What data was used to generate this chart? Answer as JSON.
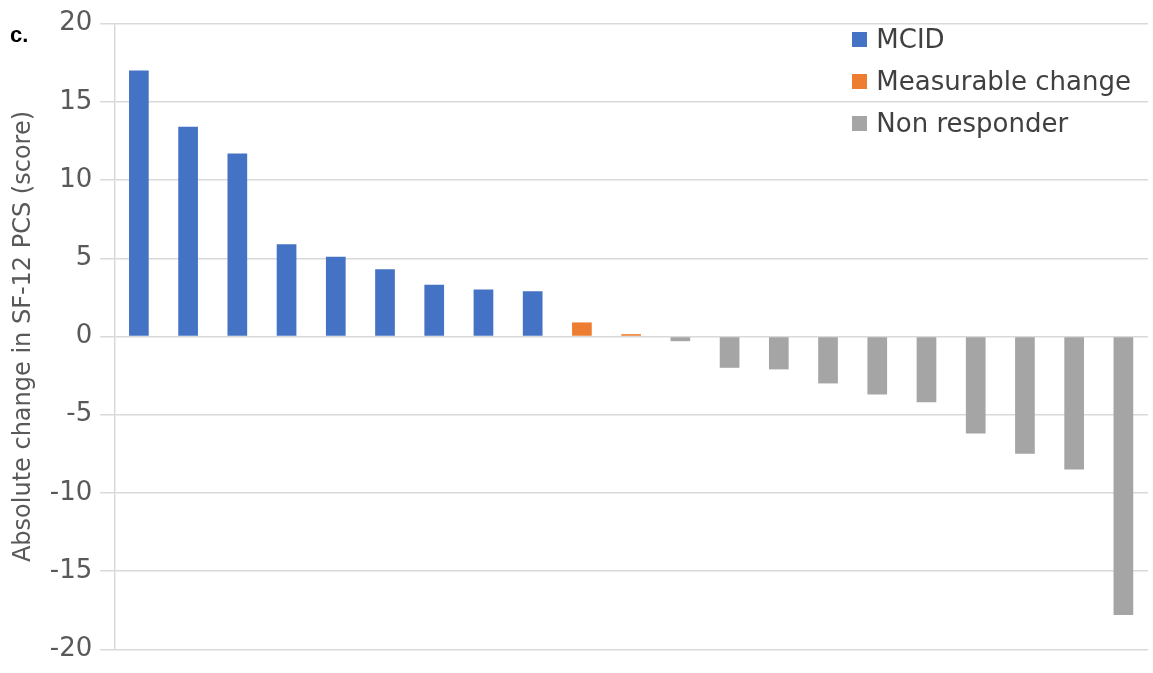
{
  "chart_data": {
    "type": "bar",
    "ylabel": "Absolute change in SF-12 PCS (score)",
    "annotations": [
      "c."
    ],
    "categories": [
      null,
      null,
      null,
      null,
      null,
      null,
      null,
      null,
      null,
      null,
      null,
      null,
      null,
      null,
      null,
      null,
      null,
      null,
      null,
      null,
      null
    ],
    "stacked": true,
    "series": [
      {
        "name": "MCID",
        "color": "#4472c4",
        "values": [
          17.0,
          13.4,
          11.7,
          5.9,
          5.1,
          4.3,
          3.3,
          3.0,
          2.9,
          null,
          null,
          null,
          null,
          null,
          null,
          null,
          null,
          null,
          null,
          null,
          null
        ]
      },
      {
        "name": "Measurable change",
        "color": "#ed7d31",
        "values": [
          null,
          null,
          null,
          null,
          null,
          null,
          null,
          null,
          null,
          0.9,
          0.15,
          null,
          null,
          null,
          null,
          null,
          null,
          null,
          null,
          null,
          null
        ]
      },
      {
        "name": "Non responder",
        "color": "#a5a5a5",
        "values": [
          null,
          null,
          null,
          null,
          null,
          null,
          null,
          null,
          null,
          null,
          null,
          -0.3,
          -2.0,
          -2.1,
          -3.0,
          -3.7,
          -4.2,
          -6.2,
          -7.5,
          -8.5,
          -17.8
        ]
      }
    ],
    "ylim": [
      -20,
      20
    ],
    "yticks": [
      -20,
      -15,
      -10,
      -5,
      0,
      5,
      10,
      15,
      20
    ],
    "grid": "y",
    "legend": "top right"
  }
}
